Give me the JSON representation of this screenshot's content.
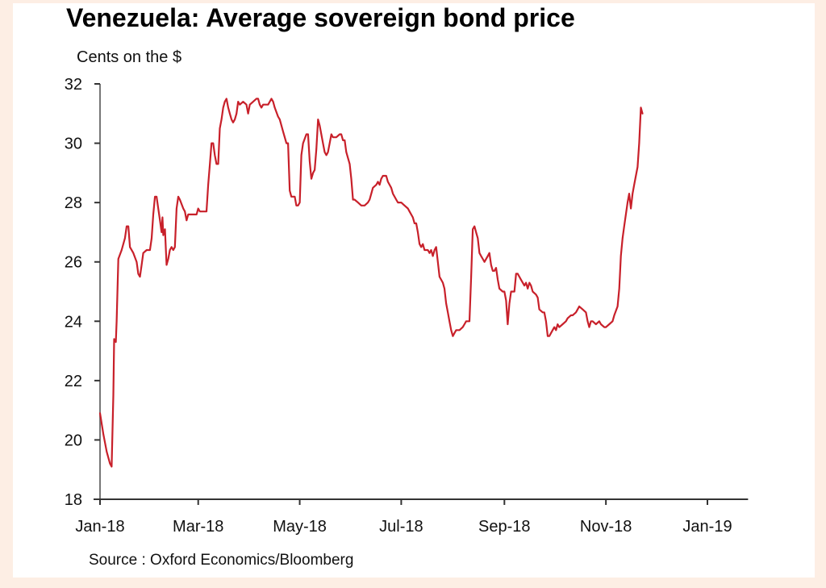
{
  "chart_data": {
    "type": "line",
    "title": "Venezuela: Average sovereign bond price",
    "ylabel": "Cents on the $",
    "xlabel": "",
    "source": "Source : Oxford Economics/Bloomberg",
    "ylim": [
      18,
      32
    ],
    "yticks": [
      18,
      20,
      22,
      24,
      26,
      28,
      30,
      32
    ],
    "xticks": [
      {
        "label": "Jan-18",
        "day": 0
      },
      {
        "label": "Mar-18",
        "day": 59
      },
      {
        "label": "May-18",
        "day": 120
      },
      {
        "label": "Jul-18",
        "day": 181
      },
      {
        "label": "Sep-18",
        "day": 243
      },
      {
        "label": "Nov-18",
        "day": 304
      },
      {
        "label": "Jan-19",
        "day": 365
      }
    ],
    "xlim": [
      0,
      387
    ],
    "grid": false,
    "legend": "none",
    "color": "#c8202a",
    "series": [
      {
        "name": "Average sovereign bond price",
        "points": [
          [
            0,
            20.9
          ],
          [
            2,
            20.2
          ],
          [
            4,
            19.6
          ],
          [
            6,
            19.2
          ],
          [
            7,
            19.1
          ],
          [
            8,
            21.5
          ],
          [
            8.5,
            23.4
          ],
          [
            9.5,
            23.3
          ],
          [
            10,
            24.0
          ],
          [
            11,
            26.1
          ],
          [
            13,
            26.4
          ],
          [
            15,
            26.8
          ],
          [
            16,
            27.2
          ],
          [
            17,
            27.2
          ],
          [
            18,
            26.5
          ],
          [
            20,
            26.3
          ],
          [
            22,
            26.0
          ],
          [
            23,
            25.6
          ],
          [
            24,
            25.5
          ],
          [
            25,
            25.9
          ],
          [
            26,
            26.3
          ],
          [
            28,
            26.4
          ],
          [
            30,
            26.4
          ],
          [
            31,
            26.8
          ],
          [
            32,
            27.6
          ],
          [
            33,
            28.2
          ],
          [
            34,
            28.2
          ],
          [
            35,
            27.8
          ],
          [
            36,
            27.4
          ],
          [
            37,
            27.0
          ],
          [
            37.5,
            27.5
          ],
          [
            38,
            26.9
          ],
          [
            39,
            27.1
          ],
          [
            40,
            25.9
          ],
          [
            41,
            26.1
          ],
          [
            42,
            26.4
          ],
          [
            43,
            26.5
          ],
          [
            44,
            26.4
          ],
          [
            45,
            26.5
          ],
          [
            46,
            27.8
          ],
          [
            47,
            28.2
          ],
          [
            48,
            28.1
          ],
          [
            50,
            27.8
          ],
          [
            51,
            27.7
          ],
          [
            52,
            27.4
          ],
          [
            53,
            27.6
          ],
          [
            56,
            27.6
          ],
          [
            58,
            27.6
          ],
          [
            59,
            27.8
          ],
          [
            60,
            27.7
          ],
          [
            62,
            27.7
          ],
          [
            64,
            27.7
          ],
          [
            65,
            28.6
          ],
          [
            66,
            29.3
          ],
          [
            67,
            30.0
          ],
          [
            68,
            30.0
          ],
          [
            69,
            29.6
          ],
          [
            70,
            29.3
          ],
          [
            71,
            29.3
          ],
          [
            72,
            30.5
          ],
          [
            73,
            30.8
          ],
          [
            74,
            31.2
          ],
          [
            75,
            31.4
          ],
          [
            76,
            31.5
          ],
          [
            77,
            31.2
          ],
          [
            78,
            31.0
          ],
          [
            79,
            30.8
          ],
          [
            80,
            30.7
          ],
          [
            81,
            30.8
          ],
          [
            82,
            31.0
          ],
          [
            83,
            31.4
          ],
          [
            84,
            31.3
          ],
          [
            86,
            31.4
          ],
          [
            88,
            31.3
          ],
          [
            89,
            31.0
          ],
          [
            90,
            31.3
          ],
          [
            92,
            31.4
          ],
          [
            94,
            31.5
          ],
          [
            95,
            31.5
          ],
          [
            96,
            31.3
          ],
          [
            97,
            31.2
          ],
          [
            98,
            31.3
          ],
          [
            100,
            31.3
          ],
          [
            101,
            31.3
          ],
          [
            102,
            31.4
          ],
          [
            103,
            31.5
          ],
          [
            104,
            31.4
          ],
          [
            105,
            31.2
          ],
          [
            107,
            30.9
          ],
          [
            108,
            30.8
          ],
          [
            110,
            30.4
          ],
          [
            112,
            30.0
          ],
          [
            113,
            30.0
          ],
          [
            114,
            28.4
          ],
          [
            115,
            28.2
          ],
          [
            117,
            28.2
          ],
          [
            118,
            27.9
          ],
          [
            119,
            27.9
          ],
          [
            120,
            28.0
          ],
          [
            121,
            29.6
          ],
          [
            122,
            30.0
          ],
          [
            124,
            30.3
          ],
          [
            125,
            30.3
          ],
          [
            126,
            29.4
          ],
          [
            127,
            28.8
          ],
          [
            128,
            29.0
          ],
          [
            129,
            29.1
          ],
          [
            130,
            29.8
          ],
          [
            131,
            30.8
          ],
          [
            132,
            30.6
          ],
          [
            134,
            30.0
          ],
          [
            135,
            29.7
          ],
          [
            136,
            29.6
          ],
          [
            137,
            29.7
          ],
          [
            138,
            30.0
          ],
          [
            139,
            30.3
          ],
          [
            140,
            30.2
          ],
          [
            142,
            30.2
          ],
          [
            144,
            30.3
          ],
          [
            145,
            30.3
          ],
          [
            146,
            30.1
          ],
          [
            147,
            30.1
          ],
          [
            148,
            29.7
          ],
          [
            150,
            29.3
          ],
          [
            151,
            28.8
          ],
          [
            152,
            28.1
          ],
          [
            153,
            28.1
          ],
          [
            155,
            28.0
          ],
          [
            157,
            27.9
          ],
          [
            159,
            27.9
          ],
          [
            161,
            28.0
          ],
          [
            162,
            28.1
          ],
          [
            163,
            28.3
          ],
          [
            164,
            28.5
          ],
          [
            166,
            28.6
          ],
          [
            167,
            28.7
          ],
          [
            168,
            28.6
          ],
          [
            169,
            28.8
          ],
          [
            170,
            28.9
          ],
          [
            172,
            28.9
          ],
          [
            173,
            28.7
          ],
          [
            175,
            28.5
          ],
          [
            176,
            28.3
          ],
          [
            178,
            28.1
          ],
          [
            179,
            28.0
          ],
          [
            181,
            28.0
          ],
          [
            183,
            27.9
          ],
          [
            185,
            27.8
          ],
          [
            186,
            27.7
          ],
          [
            188,
            27.5
          ],
          [
            189,
            27.3
          ],
          [
            190,
            27.3
          ],
          [
            191,
            27.0
          ],
          [
            192,
            26.6
          ],
          [
            193,
            26.5
          ],
          [
            194,
            26.6
          ],
          [
            195,
            26.4
          ],
          [
            197,
            26.4
          ],
          [
            198,
            26.3
          ],
          [
            199,
            26.4
          ],
          [
            200,
            26.2
          ],
          [
            201,
            26.4
          ],
          [
            202,
            26.5
          ],
          [
            203,
            26.0
          ],
          [
            204,
            25.5
          ],
          [
            206,
            25.3
          ],
          [
            207,
            25.1
          ],
          [
            208,
            24.6
          ],
          [
            209,
            24.3
          ],
          [
            210,
            24.0
          ],
          [
            211,
            23.7
          ],
          [
            212,
            23.5
          ],
          [
            213,
            23.6
          ],
          [
            214,
            23.7
          ],
          [
            216,
            23.7
          ],
          [
            218,
            23.8
          ],
          [
            219,
            23.9
          ],
          [
            220,
            24.0
          ],
          [
            222,
            24.0
          ],
          [
            223,
            25.5
          ],
          [
            224,
            27.1
          ],
          [
            225,
            27.2
          ],
          [
            226,
            27.0
          ],
          [
            227,
            26.8
          ],
          [
            228,
            26.3
          ],
          [
            229,
            26.2
          ],
          [
            230,
            26.1
          ],
          [
            231,
            26.0
          ],
          [
            233,
            26.2
          ],
          [
            234,
            26.3
          ],
          [
            235,
            25.9
          ],
          [
            236,
            25.7
          ],
          [
            237,
            25.7
          ],
          [
            238,
            25.8
          ],
          [
            239,
            25.4
          ],
          [
            240,
            25.1
          ],
          [
            242,
            25.0
          ],
          [
            243,
            25.0
          ],
          [
            244,
            24.7
          ],
          [
            245,
            23.9
          ],
          [
            246,
            24.6
          ],
          [
            247,
            25.0
          ],
          [
            248,
            25.0
          ],
          [
            249,
            25.0
          ],
          [
            250,
            25.6
          ],
          [
            251,
            25.6
          ],
          [
            253,
            25.4
          ],
          [
            255,
            25.2
          ],
          [
            256,
            25.3
          ],
          [
            257,
            25.1
          ],
          [
            258,
            25.3
          ],
          [
            259,
            25.2
          ],
          [
            260,
            25.0
          ],
          [
            262,
            24.9
          ],
          [
            263,
            24.8
          ],
          [
            264,
            24.4
          ],
          [
            266,
            24.3
          ],
          [
            267,
            24.3
          ],
          [
            268,
            24.0
          ],
          [
            269,
            23.5
          ],
          [
            270,
            23.5
          ],
          [
            272,
            23.7
          ],
          [
            273,
            23.8
          ],
          [
            274,
            23.7
          ],
          [
            275,
            23.9
          ],
          [
            276,
            23.8
          ],
          [
            278,
            23.9
          ],
          [
            280,
            24.0
          ],
          [
            281,
            24.1
          ],
          [
            283,
            24.2
          ],
          [
            284,
            24.2
          ],
          [
            286,
            24.3
          ],
          [
            287,
            24.4
          ],
          [
            288,
            24.5
          ],
          [
            290,
            24.4
          ],
          [
            292,
            24.3
          ],
          [
            293,
            24.0
          ],
          [
            294,
            23.8
          ],
          [
            295,
            24.0
          ],
          [
            296,
            24.0
          ],
          [
            298,
            23.9
          ],
          [
            300,
            24.0
          ],
          [
            301,
            23.9
          ],
          [
            303,
            23.8
          ],
          [
            304,
            23.8
          ],
          [
            306,
            23.9
          ],
          [
            308,
            24.0
          ],
          [
            309,
            24.2
          ],
          [
            311,
            24.5
          ],
          [
            312,
            25.1
          ],
          [
            313,
            26.2
          ],
          [
            314,
            26.8
          ],
          [
            315,
            27.2
          ],
          [
            316,
            27.6
          ],
          [
            317,
            28.0
          ],
          [
            318,
            28.3
          ],
          [
            319,
            27.8
          ],
          [
            320,
            28.3
          ],
          [
            321,
            28.6
          ],
          [
            322,
            28.9
          ],
          [
            323,
            29.2
          ],
          [
            324,
            30.0
          ],
          [
            325,
            31.2
          ],
          [
            326,
            31.0
          ]
        ]
      }
    ]
  }
}
